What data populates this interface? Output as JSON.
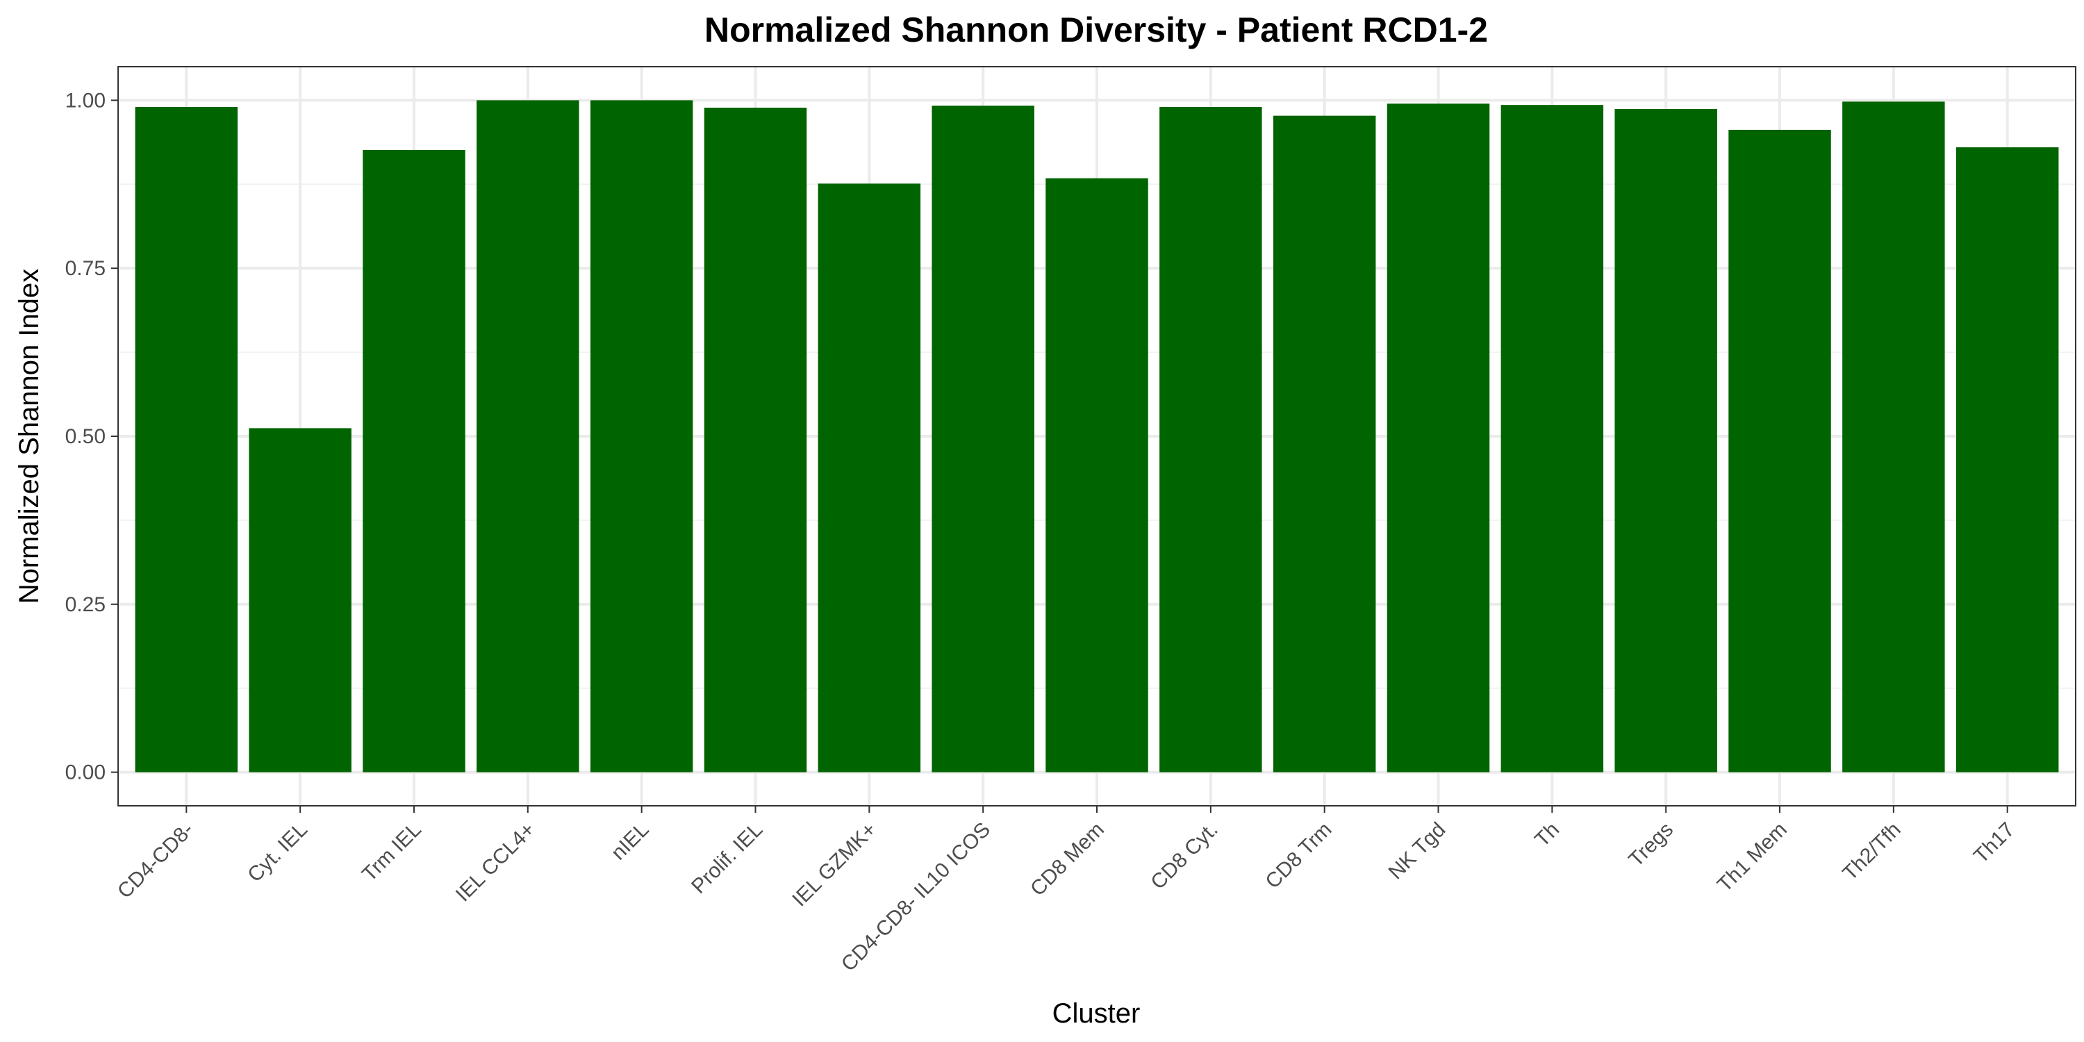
{
  "chart_data": {
    "type": "bar",
    "title": "Normalized Shannon Diversity - Patient RCD1-2",
    "xlabel": "Cluster",
    "ylabel": "Normalized Shannon Index",
    "ylim": [
      -0.05,
      1.05
    ],
    "yticks": [
      0,
      0.25,
      0.5,
      0.75,
      1.0
    ],
    "ytick_labels": [
      "0.00",
      "0.25",
      "0.50",
      "0.75",
      "1.00"
    ],
    "grid": true,
    "legend": "none",
    "bar_color": "#006400",
    "categories": [
      "CD4-CD8-",
      "Cyt. IEL",
      "Trm IEL",
      "IEL CCL4+",
      "nIEL",
      "Prolif. IEL",
      "IEL GZMK+",
      "CD4-CD8- IL10 ICOS",
      "CD8 Mem",
      "CD8 Cyt.",
      "CD8 Trm",
      "NK Tgd",
      "Th",
      "Tregs",
      "Th1 Mem",
      "Th2/Tfh",
      "Th17"
    ],
    "values": [
      0.99,
      0.512,
      0.926,
      1.0,
      1.0,
      0.989,
      0.876,
      0.992,
      0.884,
      0.99,
      0.977,
      0.995,
      0.993,
      0.987,
      0.956,
      0.998,
      0.93
    ]
  }
}
